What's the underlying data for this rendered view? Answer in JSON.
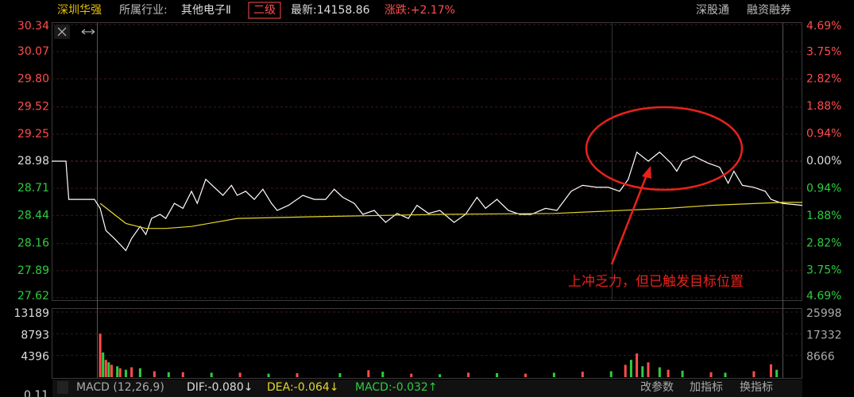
{
  "header": {
    "name": "深圳华强",
    "industry_label": "所属行业:",
    "industry": "其他电子Ⅱ",
    "level": "二级",
    "latest": "最新:14158.86",
    "change": "涨跌:+2.17%",
    "links": [
      "深股通",
      "融资融券"
    ]
  },
  "chart_data": [
    {
      "type": "line",
      "xlim": [
        -16,
        247
      ],
      "ylim": [
        27.62,
        30.34
      ],
      "yticks": [
        30.34,
        30.07,
        {
          "value": 29.8,
          "label": "29.80"
        },
        29.52,
        29.25,
        28.98,
        28.71,
        28.44,
        28.16,
        27.89,
        27.62
      ],
      "y2lim": [
        -4.69,
        4.69
      ],
      "y2ticks": [
        {
          "value": 4.69,
          "label": "4.69%"
        },
        {
          "value": 3.75,
          "label": "3.75%"
        },
        {
          "value": 2.82,
          "label": "2.82%"
        },
        {
          "value": 1.88,
          "label": "1.88%"
        },
        {
          "value": 0.94,
          "label": "0.94%"
        },
        {
          "value": 0,
          "label": "0.00%"
        },
        {
          "value": -0.94,
          "label": "0.94%"
        },
        {
          "value": -1.88,
          "label": "1.88%"
        },
        {
          "value": -2.82,
          "label": "2.82%"
        },
        {
          "value": -3.75,
          "label": "3.75%"
        },
        {
          "value": -4.69,
          "label": "4.69%"
        }
      ],
      "grid": true,
      "annotation": "上冲乏力，但已触发目标位置",
      "series": [
        {
          "color": "#ffffff",
          "x": [
            -16,
            -11,
            -10,
            -1,
            1,
            3,
            6,
            10,
            12,
            15,
            17,
            19,
            22,
            24,
            27,
            30,
            33,
            35,
            38,
            41,
            44,
            47,
            49,
            52,
            55,
            58,
            61,
            63,
            67,
            72,
            76,
            80,
            83,
            86,
            90,
            93,
            97,
            101,
            105,
            109,
            112,
            116,
            120,
            125,
            129,
            133,
            136,
            140,
            144,
            148,
            152,
            157,
            161,
            166,
            170,
            175,
            179,
            183,
            186,
            189,
            193,
            197,
            201,
            203,
            205,
            209,
            214,
            218,
            221,
            223,
            226,
            230,
            234,
            236,
            240,
            247
          ],
          "values": [
            28.98,
            28.98,
            28.6,
            28.6,
            28.51,
            28.29,
            28.21,
            28.09,
            28.21,
            28.33,
            28.25,
            28.41,
            28.45,
            28.41,
            28.56,
            28.51,
            28.68,
            28.56,
            28.8,
            28.72,
            28.64,
            28.74,
            28.64,
            28.68,
            28.6,
            28.7,
            28.56,
            28.49,
            28.54,
            28.64,
            28.6,
            28.6,
            28.7,
            28.62,
            28.56,
            28.45,
            28.49,
            28.37,
            28.46,
            28.41,
            28.54,
            28.46,
            28.49,
            28.37,
            28.45,
            28.62,
            28.51,
            28.6,
            28.49,
            28.45,
            28.45,
            28.51,
            28.49,
            28.68,
            28.74,
            28.72,
            28.72,
            28.68,
            28.8,
            29.07,
            28.98,
            29.07,
            28.96,
            28.88,
            28.98,
            29.03,
            28.96,
            28.92,
            28.76,
            28.88,
            28.74,
            28.72,
            28.68,
            28.6,
            28.56,
            28.54
          ]
        },
        {
          "color": "#e6d629",
          "x": [
            1,
            10,
            17,
            24,
            33,
            49,
            80,
            120,
            160,
            200,
            215,
            240,
            247
          ],
          "values": [
            28.56,
            28.36,
            28.31,
            28.31,
            28.33,
            28.41,
            28.43,
            28.45,
            28.46,
            28.51,
            28.54,
            28.57,
            28.57
          ]
        }
      ]
    },
    {
      "type": "bar",
      "xlim": [
        -16,
        247
      ],
      "ylim": [
        0,
        13189
      ],
      "yticks": [
        13189,
        8793,
        4396
      ],
      "y2lim": [
        0,
        25998
      ],
      "y2ticks": [
        25998,
        17332,
        8666
      ],
      "series": [
        {
          "color": "#ff4d4d",
          "x": [
            1,
            3,
            5,
            8,
            12,
            20,
            30,
            50,
            70,
            95,
            110,
            130,
            150,
            170,
            185,
            189,
            193,
            200,
            215,
            230,
            236
          ],
          "values": [
            8800,
            3500,
            2500,
            1800,
            2000,
            1200,
            1000,
            900,
            800,
            1400,
            700,
            900,
            700,
            1100,
            2500,
            4800,
            3000,
            1500,
            1000,
            1200,
            2600
          ]
        },
        {
          "color": "#2ecc40",
          "x": [
            2,
            4,
            7,
            10,
            15,
            25,
            40,
            60,
            85,
            100,
            120,
            140,
            160,
            180,
            187,
            191,
            197,
            205,
            220,
            238
          ],
          "values": [
            5000,
            3000,
            2200,
            1500,
            1800,
            1000,
            900,
            700,
            800,
            1100,
            600,
            800,
            900,
            1200,
            3500,
            2200,
            2000,
            1300,
            900,
            1500
          ]
        }
      ]
    }
  ],
  "footer": {
    "axis_value": "0.11",
    "indicator": "MACD (12,26,9)",
    "dif": "DIF:-0.080↓",
    "dea": "DEA:-0.064↓",
    "macd": "MACD:-0.032↑",
    "buttons": [
      "改参数",
      "加指标",
      "换指标"
    ]
  }
}
